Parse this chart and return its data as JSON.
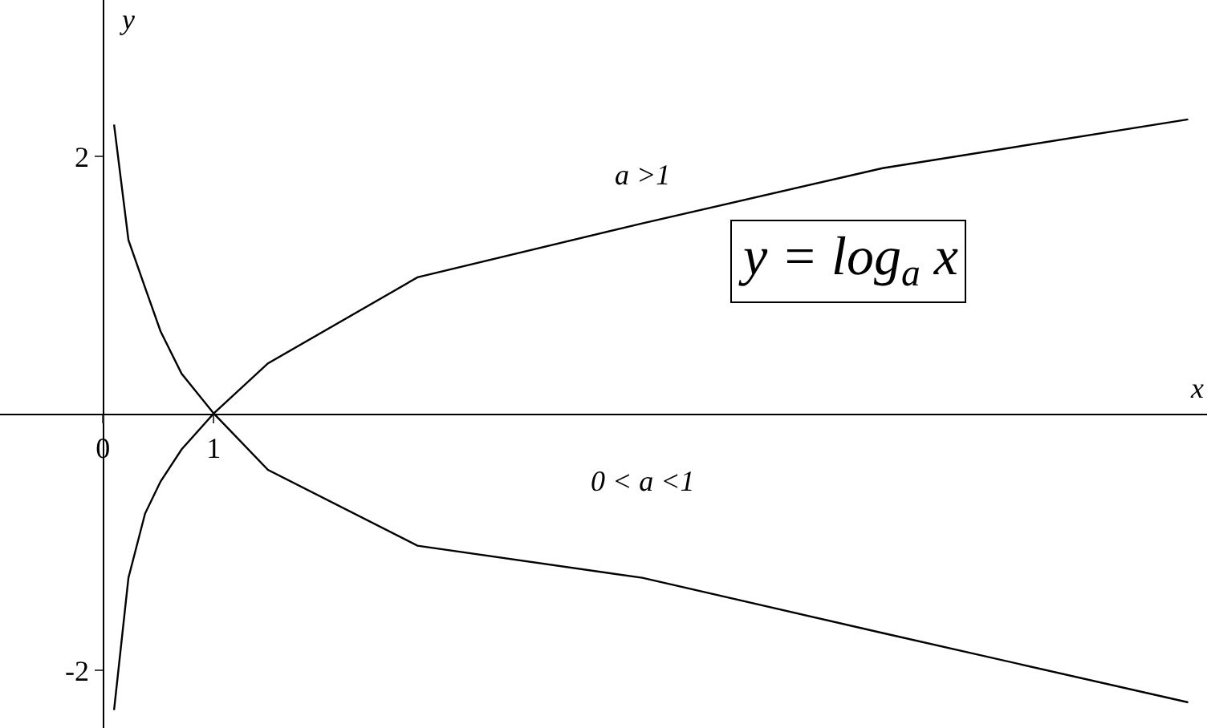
{
  "chart_data": {
    "type": "line",
    "xlabel": "x",
    "ylabel": "y",
    "xlim": [
      -0.93,
      9.97
    ],
    "ylim": [
      -2.45,
      3.22
    ],
    "xticks": [
      0,
      1
    ],
    "yticks": [
      -2,
      2
    ],
    "grid": false,
    "legend": false,
    "marker": "none",
    "line_style": "solid",
    "x": [
      0.1,
      0.23,
      0.38,
      0.52,
      0.71,
      1,
      1.49,
      2.84,
      4.87,
      7.04,
      9.8
    ],
    "series": [
      {
        "name": "a >1",
        "color": "#000000",
        "values": [
          -2.31,
          -1.28,
          -0.78,
          -0.53,
          -0.28,
          0,
          0.39,
          1.06,
          1.48,
          1.91,
          2.29
        ]
      },
      {
        "name": "0 < a <1",
        "color": "#000000",
        "values": [
          2.25,
          1.35,
          0.98,
          0.64,
          0.31,
          0,
          -0.44,
          -1.03,
          -1.28,
          -1.71,
          -2.25
        ]
      }
    ],
    "annotations": [
      "y = log$_{a}$ x"
    ]
  }
}
